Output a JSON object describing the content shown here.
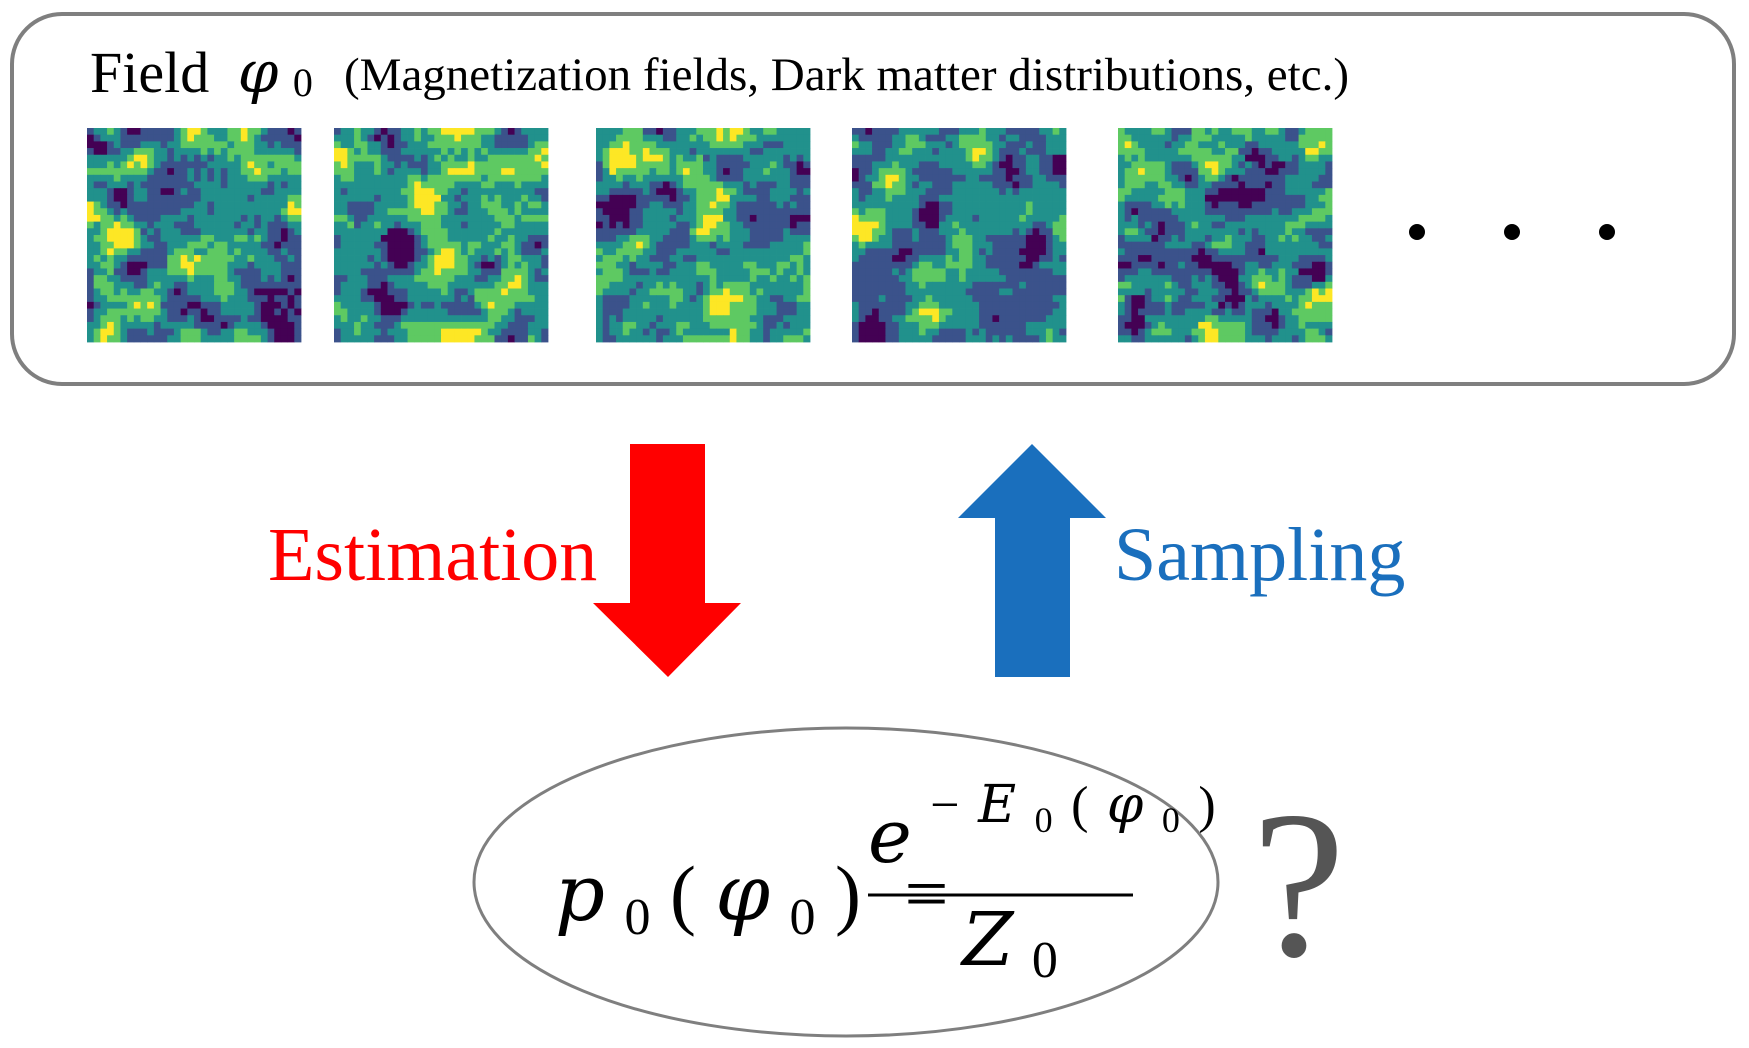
{
  "field_panel": {
    "title_word": "Field",
    "title_symbol": "φ",
    "title_subscript": "0",
    "title_examples": "(Magnetization fields,  Dark matter distributions, etc.)",
    "sample_count": 5,
    "grid_resolution": 32,
    "colormap": [
      "#440154",
      "#3b528b",
      "#21918c",
      "#5ec962",
      "#fde725"
    ],
    "ellipsis_dots": 3
  },
  "arrows": {
    "estimation": {
      "label": "Estimation",
      "color": "#ff0000"
    },
    "sampling": {
      "label": "Sampling",
      "color": "#1a6fbd"
    }
  },
  "formula": {
    "lhs_p": "p",
    "lhs_sub": "0",
    "open_paren": "(",
    "phi": "φ",
    "phi_sub": "0",
    "close_paren": ")",
    "equals": "=",
    "num_e": "e",
    "num_minus": "−",
    "num_E": "E",
    "num_E_sub": "0",
    "num_open": "(",
    "num_phi": "φ",
    "num_phi_sub": "0",
    "num_close": ")",
    "den_Z": "Z",
    "den_sub": "0"
  },
  "question_mark": "?",
  "colors": {
    "frame_stroke": "#7f7f7f",
    "text": "#000000",
    "question_mark": "#555555"
  }
}
